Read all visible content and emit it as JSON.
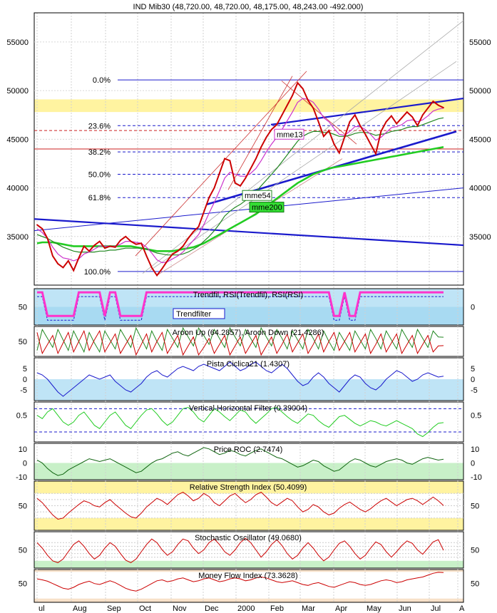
{
  "chart_data": {
    "type": "line",
    "title": "IND Mib30 (48,720.00, 48,720.00, 48,175.00, 48,243.00 -492.000)",
    "x_ticks": [
      "ul",
      "Aug",
      "Sep",
      "Oct",
      "Nov",
      "Dec",
      "2000",
      "Feb",
      "Mar",
      "Apr",
      "May",
      "Jun",
      "Jul",
      "A"
    ],
    "colors": {
      "price": "#cc0000",
      "mme13": "#cc33cc",
      "mme54": "#228822",
      "mme200": "#22cc22",
      "trend": "#1a1acc",
      "band_yellow": "#fff3a0",
      "band_blue": "#bfe4f6",
      "band_green": "#c8f0c8"
    },
    "main": {
      "ylim": [
        30000,
        58000
      ],
      "y_ticks": [
        "55000",
        "50000",
        "45000",
        "40000",
        "35000"
      ],
      "y_tick_values": [
        55000,
        50000,
        45000,
        40000,
        35000
      ],
      "fib_levels": [
        {
          "label": "0.0%",
          "value": 51100
        },
        {
          "label": "23.6%",
          "value": 46400
        },
        {
          "label": "38.2%",
          "value": 43700
        },
        {
          "label": "50.0%",
          "value": 41400
        },
        {
          "label": "61.8%",
          "value": 39000
        },
        {
          "label": "100.0%",
          "value": 31400
        }
      ],
      "ma_labels": [
        "mme13",
        "mme54",
        "mme200"
      ],
      "price": [
        36200,
        35800,
        34800,
        33000,
        32200,
        31800,
        32500,
        31500,
        32800,
        34000,
        33500,
        34100,
        34500,
        33800,
        34000,
        33900,
        34600,
        35000,
        34500,
        34200,
        34300,
        33000,
        31800,
        31000,
        31700,
        32500,
        33200,
        33500,
        34000,
        34800,
        35500,
        36000,
        37500,
        39000,
        40000,
        41500,
        43000,
        42800,
        40500,
        40200,
        41000,
        42000,
        43000,
        44200,
        45200,
        46000,
        46500,
        47500,
        48500,
        49500,
        50800,
        50200,
        49000,
        48200,
        46800,
        45300,
        45900,
        44500,
        43600,
        45200,
        46800,
        47500,
        46400,
        45500,
        44500,
        43500,
        45800,
        46800,
        47400,
        46600,
        47200,
        47800,
        47300,
        46400,
        47500,
        48200,
        48900,
        48500,
        48243
      ],
      "mme13": [
        35800,
        35400,
        34800,
        33900,
        33200,
        32800,
        32700,
        32500,
        32700,
        33200,
        33400,
        33700,
        34000,
        34000,
        34000,
        34000,
        34200,
        34500,
        34500,
        34400,
        34300,
        33900,
        33300,
        32600,
        32300,
        32400,
        32700,
        33000,
        33400,
        34000,
        34600,
        35200,
        36200,
        37400,
        38500,
        39700,
        41000,
        41600,
        41400,
        41200,
        41200,
        41500,
        42000,
        42800,
        43700,
        44500,
        45200,
        46000,
        46900,
        47800,
        48800,
        49200,
        49100,
        48800,
        48100,
        47200,
        46800,
        46100,
        45500,
        45400,
        45800,
        46300,
        46300,
        46000,
        45500,
        44900,
        45200,
        45700,
        46200,
        46300,
        46500,
        46900,
        47000,
        46800,
        47000,
        47400,
        47900,
        48100,
        48200
      ],
      "mme54": [
        35200,
        35000,
        34800,
        34500,
        34200,
        33900,
        33700,
        33500,
        33400,
        33400,
        33400,
        33400,
        33500,
        33500,
        33600,
        33600,
        33700,
        33800,
        33800,
        33800,
        33800,
        33700,
        33500,
        33300,
        33200,
        33100,
        33100,
        33100,
        33200,
        33400,
        33700,
        34000,
        34500,
        35000,
        35600,
        36300,
        37100,
        37600,
        38000,
        38300,
        38700,
        39100,
        39600,
        40200,
        40800,
        41400,
        42000,
        42700,
        43400,
        44100,
        44800,
        45300,
        45600,
        45800,
        45800,
        45700,
        45700,
        45500,
        45300,
        45300,
        45400,
        45600,
        45700,
        45700,
        45600,
        45400,
        45500,
        45600,
        45800,
        45900,
        46000,
        46200,
        46300,
        46300,
        46500,
        46700,
        46900,
        47100,
        47200
      ],
      "mme200": [
        34300,
        34400,
        34400,
        34400,
        34300,
        34200,
        34100,
        34000,
        34000,
        34000,
        34000,
        34000,
        34000,
        34000,
        34000,
        34000,
        34000,
        34000,
        34000,
        33900,
        33800,
        33700,
        33600,
        33500,
        33500,
        33500,
        33500,
        33600,
        33700,
        33800,
        33900,
        34100,
        34300,
        34600,
        34900,
        35200,
        35500,
        35800,
        36100,
        36400,
        36700,
        37000,
        37300,
        37700,
        38100,
        38500,
        38900,
        39300,
        39700,
        40100,
        40500,
        40800,
        41100,
        41400,
        41600,
        41800,
        42000,
        42100,
        42200,
        42300,
        42400,
        42500,
        42600,
        42700,
        42800,
        42900,
        43000,
        43100,
        43200,
        43300,
        43400,
        43500,
        43600,
        43700,
        43800,
        43900,
        44000,
        44100,
        44200
      ]
    },
    "panels": [
      {
        "key": "trendfil",
        "label": "Trendfil, RSI(Trendfil), RSI(RSI)",
        "badge": "Trendfilter",
        "left_ticks": [
          "50"
        ],
        "right_ticks": [
          "0"
        ],
        "values": [
          90,
          90,
          25,
          25,
          25,
          25,
          25,
          25,
          90,
          90,
          90,
          90,
          90,
          25,
          90,
          90,
          25,
          25,
          25,
          25,
          25,
          90,
          90,
          90,
          90,
          90,
          90,
          90,
          90,
          90,
          90,
          90,
          90,
          90,
          90,
          90,
          90,
          90,
          90,
          90,
          90,
          90,
          90,
          90,
          90,
          90,
          90,
          90,
          90,
          90,
          90,
          90,
          90,
          90,
          90,
          90,
          90,
          25,
          25,
          90,
          25,
          25,
          90,
          90,
          90,
          90,
          90,
          90,
          90,
          90,
          90,
          90,
          90,
          90,
          90,
          90,
          90,
          90,
          90
        ]
      },
      {
        "key": "aroon",
        "label": "Aroon Up (64.2857), Aroon Down (21.4286)",
        "left_ticks": [
          "50"
        ],
        "right_ticks": [],
        "values": [
          20,
          90,
          60,
          30,
          90,
          55,
          20,
          85,
          50,
          15,
          80,
          45,
          15,
          85,
          55,
          25,
          90,
          60,
          30,
          95,
          60,
          25,
          85,
          50,
          20,
          90,
          60,
          30,
          95,
          65,
          35,
          95,
          70,
          40,
          90,
          60,
          30,
          95,
          65,
          35,
          90,
          60,
          30,
          95,
          65,
          35,
          90,
          60,
          25,
          85,
          55,
          25,
          90,
          60,
          25,
          85,
          50,
          20,
          80,
          50,
          20,
          85,
          55,
          25,
          90,
          60,
          25,
          85,
          55,
          25,
          90,
          60,
          30,
          90,
          60,
          30,
          85,
          65,
          64
        ]
      },
      {
        "key": "pista",
        "label": "Pista Ciclica21 (1.4307)",
        "left_ticks": [
          "5",
          "0",
          "-5"
        ],
        "right_ticks": [
          "5",
          "0",
          "-5"
        ],
        "values": [
          3,
          2,
          0,
          -3,
          -6,
          -8,
          -6,
          -4,
          -2,
          0,
          2,
          1,
          0,
          1,
          2,
          -1,
          -3,
          -5,
          -6,
          -4,
          -2,
          1,
          3,
          4,
          2,
          1,
          3,
          5,
          6,
          5,
          4,
          6,
          7,
          6,
          5,
          4,
          6,
          8,
          6,
          4,
          5,
          7,
          8,
          6,
          4,
          3,
          5,
          7,
          5,
          2,
          -1,
          -3,
          -2,
          1,
          3,
          1,
          -2,
          -4,
          -6,
          -3,
          0,
          2,
          1,
          -2,
          -4,
          -5,
          -3,
          0,
          2,
          4,
          3,
          1,
          -1,
          0,
          2,
          3,
          2,
          1,
          1.4
        ]
      },
      {
        "key": "vhf",
        "label": "Vertical Horizontal Filter (0.39004)",
        "left_ticks": [
          "0.5"
        ],
        "right_ticks": [
          "0.5"
        ],
        "values": [
          0.5,
          0.45,
          0.55,
          0.6,
          0.5,
          0.4,
          0.35,
          0.4,
          0.5,
          0.55,
          0.45,
          0.35,
          0.3,
          0.4,
          0.5,
          0.55,
          0.45,
          0.35,
          0.3,
          0.4,
          0.5,
          0.58,
          0.6,
          0.52,
          0.42,
          0.35,
          0.4,
          0.5,
          0.6,
          0.62,
          0.55,
          0.45,
          0.4,
          0.5,
          0.6,
          0.55,
          0.48,
          0.42,
          0.5,
          0.58,
          0.55,
          0.45,
          0.38,
          0.45,
          0.52,
          0.6,
          0.62,
          0.55,
          0.48,
          0.42,
          0.38,
          0.45,
          0.52,
          0.5,
          0.42,
          0.36,
          0.32,
          0.4,
          0.48,
          0.5,
          0.44,
          0.38,
          0.34,
          0.38,
          0.42,
          0.4,
          0.36,
          0.34,
          0.38,
          0.42,
          0.38,
          0.34,
          0.3,
          0.22,
          0.18,
          0.24,
          0.32,
          0.38,
          0.39
        ]
      },
      {
        "key": "roc",
        "label": "Price ROC (2.7474)",
        "left_ticks": [
          "10",
          "0",
          "-10"
        ],
        "right_ticks": [
          "10",
          "0",
          "-10"
        ],
        "values": [
          2,
          0,
          -4,
          -7,
          -9,
          -8,
          -5,
          -3,
          -1,
          1,
          3,
          2,
          1,
          2,
          3,
          1,
          -1,
          -3,
          -5,
          -7,
          -6,
          -3,
          0,
          2,
          3,
          5,
          7,
          8,
          6,
          5,
          7,
          9,
          11,
          10,
          8,
          6,
          7,
          9,
          8,
          6,
          5,
          7,
          9,
          10,
          8,
          6,
          4,
          3,
          1,
          -1,
          -3,
          -2,
          0,
          2,
          1,
          -2,
          -4,
          -6,
          -5,
          -2,
          1,
          3,
          2,
          0,
          -2,
          -3,
          -1,
          1,
          2,
          3,
          2,
          0,
          -1,
          1,
          3,
          4,
          3,
          2,
          2.7
        ]
      },
      {
        "key": "rsi",
        "label": "Relative Strength Index (50.4099)",
        "left_ticks": [
          "50"
        ],
        "right_ticks": [
          "50"
        ],
        "values": [
          62,
          55,
          45,
          35,
          28,
          30,
          38,
          45,
          52,
          58,
          55,
          50,
          48,
          55,
          60,
          52,
          45,
          38,
          32,
          30,
          38,
          48,
          55,
          62,
          58,
          52,
          60,
          68,
          72,
          66,
          58,
          62,
          70,
          65,
          55,
          50,
          58,
          66,
          70,
          62,
          55,
          60,
          68,
          72,
          64,
          55,
          50,
          56,
          62,
          58,
          48,
          40,
          44,
          52,
          48,
          40,
          35,
          38,
          46,
          52,
          56,
          50,
          44,
          40,
          45,
          52,
          58,
          62,
          56,
          50,
          55,
          60,
          62,
          58,
          52,
          58,
          64,
          58,
          50.4
        ]
      },
      {
        "key": "stoch",
        "label": "Stochastic Oscillator (49.0680)",
        "left_ticks": [
          "50"
        ],
        "right_ticks": [
          "50"
        ],
        "values": [
          70,
          55,
          35,
          20,
          15,
          25,
          45,
          65,
          75,
          60,
          40,
          25,
          35,
          55,
          70,
          60,
          40,
          22,
          15,
          25,
          45,
          65,
          80,
          70,
          50,
          35,
          45,
          65,
          80,
          75,
          55,
          40,
          50,
          70,
          80,
          65,
          45,
          35,
          50,
          70,
          82,
          70,
          50,
          30,
          45,
          65,
          78,
          62,
          40,
          25,
          35,
          55,
          70,
          55,
          35,
          20,
          30,
          50,
          68,
          75,
          60,
          40,
          25,
          35,
          55,
          72,
          65,
          45,
          30,
          45,
          62,
          75,
          68,
          50,
          38,
          55,
          72,
          78,
          49
        ]
      },
      {
        "key": "mfi",
        "label": "Money Flow Index (73.3628)",
        "left_ticks": [
          "50"
        ],
        "right_ticks": [
          "50"
        ],
        "values": [
          60,
          58,
          55,
          50,
          45,
          40,
          38,
          42,
          48,
          52,
          55,
          50,
          48,
          52,
          56,
          52,
          46,
          40,
          36,
          34,
          38,
          44,
          50,
          56,
          58,
          54,
          56,
          60,
          62,
          58,
          54,
          56,
          60,
          62,
          58,
          54,
          56,
          60,
          62,
          60,
          56,
          58,
          62,
          64,
          62,
          58,
          54,
          52,
          54,
          56,
          52,
          48,
          46,
          50,
          52,
          48,
          44,
          42,
          46,
          50,
          54,
          52,
          48,
          46,
          48,
          52,
          56,
          58,
          56,
          52,
          54,
          58,
          60,
          62,
          64,
          68,
          72,
          74,
          73.4
        ]
      }
    ]
  }
}
